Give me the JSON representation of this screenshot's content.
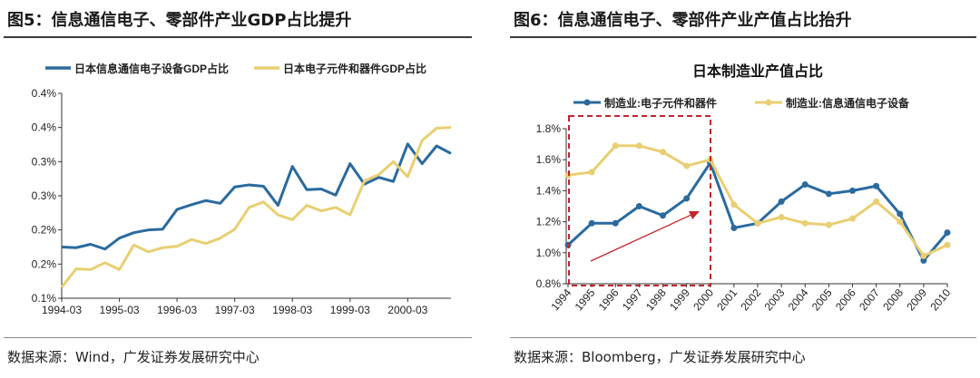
{
  "figures": [
    {
      "title": "图5：信息通信电子、零部件产业GDP占比提升",
      "source": "数据来源：Wind，广发证券发展研究中心"
    },
    {
      "title": "图6：信息通信电子、零部件产业产值占比抬升",
      "source": "数据来源：Bloomberg，广发证券发展研究中心"
    }
  ],
  "chart_data": [
    {
      "type": "line",
      "title": "",
      "xlabel": "",
      "ylabel": "",
      "x_tick_labels": [
        "1994-03",
        "1995-03",
        "1996-03",
        "1997-03",
        "1998-03",
        "1999-03",
        "2000-03"
      ],
      "y_tick_labels": [
        "0.1%",
        "0.2%",
        "0.2%",
        "0.3%",
        "0.3%",
        "0.4%",
        "0.4%"
      ],
      "y_ticks": [
        0.1,
        0.15,
        0.2,
        0.25,
        0.3,
        0.35,
        0.4
      ],
      "ylim": [
        0.1,
        0.4
      ],
      "x_count": 28,
      "legend_position": "top",
      "series": [
        {
          "name": "日本信息通信电子设备GDP占比",
          "color": "#2a6a9e",
          "values": [
            0.175,
            0.174,
            0.179,
            0.172,
            0.188,
            0.196,
            0.2,
            0.201,
            0.23,
            0.237,
            0.243,
            0.239,
            0.263,
            0.266,
            0.264,
            0.236,
            0.293,
            0.259,
            0.26,
            0.251,
            0.297,
            0.267,
            0.277,
            0.271,
            0.326,
            0.297,
            0.323,
            0.312
          ]
        },
        {
          "name": "日本电子元件和器件GDP占比",
          "color": "#e8cf72",
          "values": [
            0.116,
            0.143,
            0.142,
            0.152,
            0.142,
            0.178,
            0.168,
            0.174,
            0.176,
            0.186,
            0.18,
            0.188,
            0.201,
            0.233,
            0.241,
            0.222,
            0.215,
            0.236,
            0.228,
            0.233,
            0.222,
            0.272,
            0.281,
            0.3,
            0.278,
            0.331,
            0.349,
            0.35
          ]
        }
      ]
    },
    {
      "type": "line",
      "title": "日本制造业产值占比",
      "xlabel": "",
      "ylabel": "",
      "categories": [
        "1994",
        "1995",
        "1996",
        "1997",
        "1998",
        "1999",
        "2000",
        "2001",
        "2002",
        "2003",
        "2004",
        "2005",
        "2006",
        "2007",
        "2008",
        "2009",
        "2010"
      ],
      "y_tick_labels": [
        "0.8%",
        "1.0%",
        "1.2%",
        "1.4%",
        "1.6%",
        "1.8%"
      ],
      "y_ticks": [
        0.8,
        1.0,
        1.2,
        1.4,
        1.6,
        1.8
      ],
      "ylim": [
        0.8,
        1.8
      ],
      "legend_position": "top",
      "highlight": {
        "from": "1994",
        "to": "2000",
        "style": "red dashed box with upward arrow"
      },
      "series": [
        {
          "name": "制造业:电子元件和器件",
          "color": "#2a6a9e",
          "values": [
            1.05,
            1.19,
            1.19,
            1.3,
            1.24,
            1.35,
            1.58,
            1.16,
            1.19,
            1.33,
            1.44,
            1.38,
            1.4,
            1.43,
            1.25,
            0.95,
            1.13
          ]
        },
        {
          "name": "制造业:信息通信电子设备",
          "color": "#e8cf72",
          "values": [
            1.5,
            1.52,
            1.69,
            1.69,
            1.65,
            1.56,
            1.6,
            1.31,
            1.19,
            1.23,
            1.19,
            1.18,
            1.22,
            1.33,
            1.2,
            0.98,
            1.05
          ]
        }
      ]
    }
  ]
}
